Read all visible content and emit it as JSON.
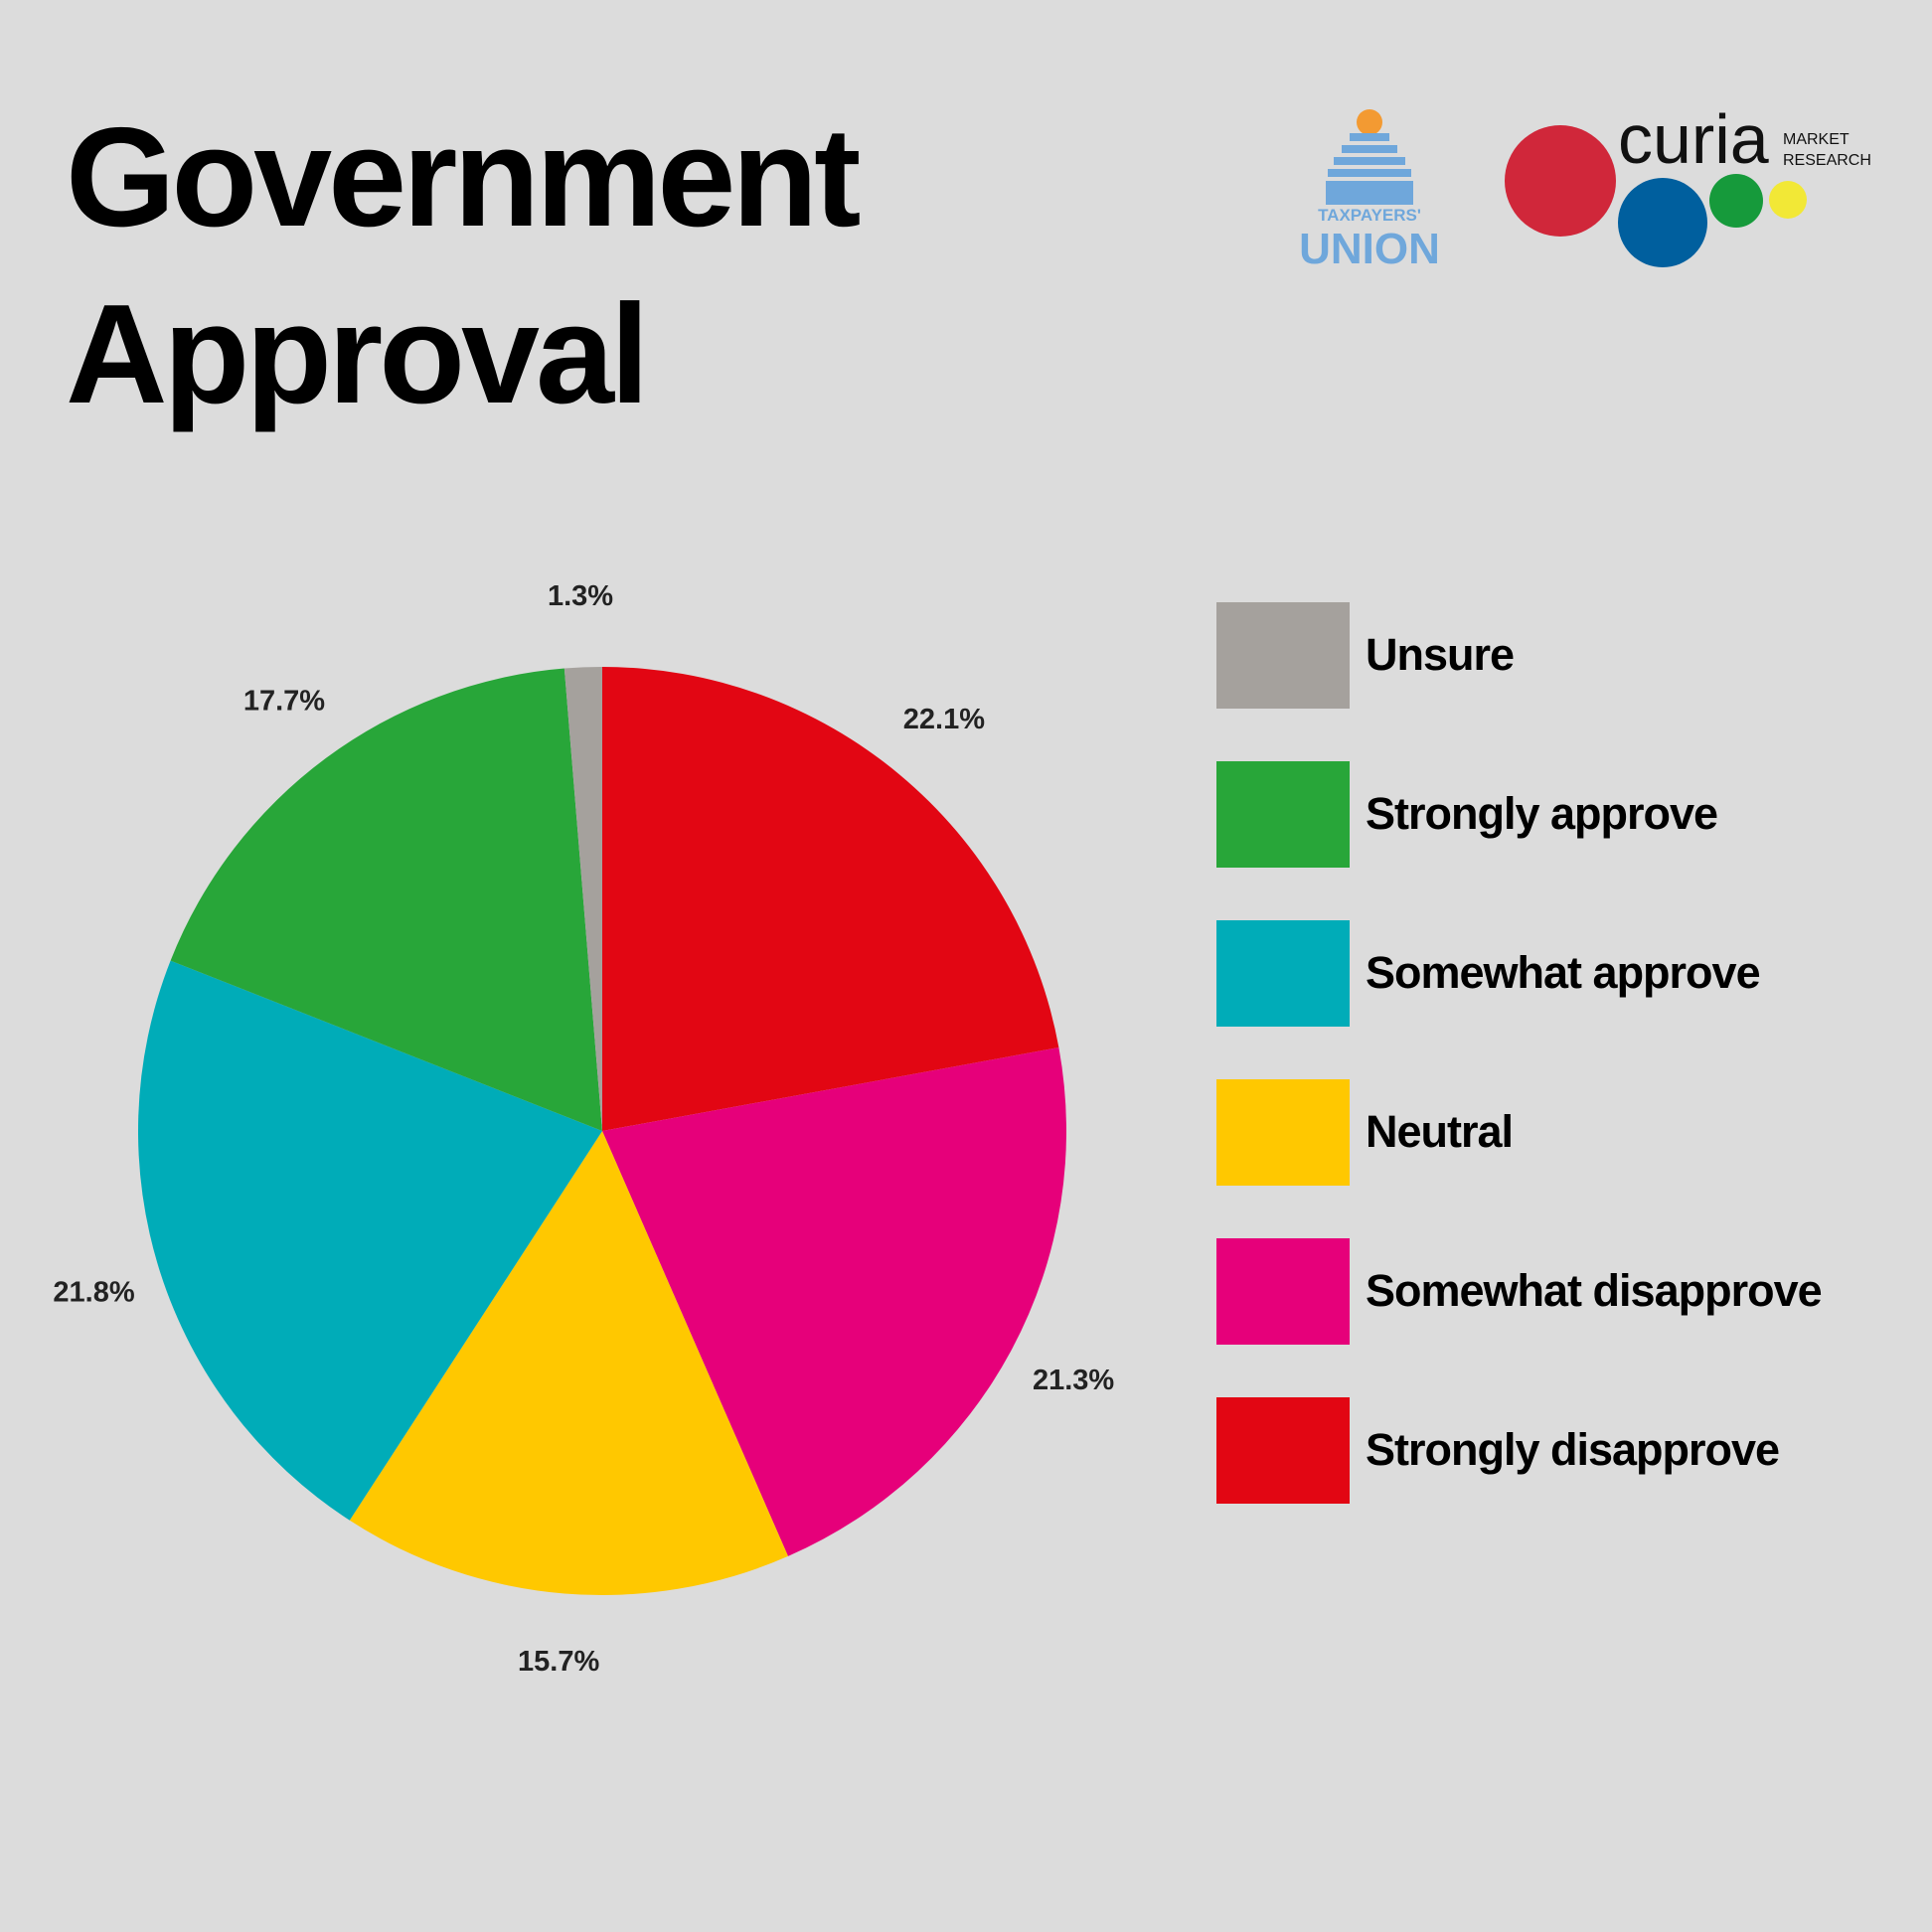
{
  "chart_data": {
    "type": "pie",
    "title": [
      "Government",
      "Approval"
    ],
    "categories": [
      "Unsure",
      "Strongly approve",
      "Somewhat approve",
      "Neutral",
      "Somewhat disapprove",
      "Strongly disapprove"
    ],
    "values": [
      1.3,
      17.7,
      21.8,
      15.7,
      21.3,
      22.1
    ],
    "value_labels": [
      "1.3%",
      "17.7%",
      "21.8%",
      "15.7%",
      "21.3%",
      "22.1%"
    ],
    "colors": [
      "#a5a19d",
      "#28a639",
      "#00acb8",
      "#ffc800",
      "#e6007a",
      "#e20613"
    ],
    "logos": {
      "taxpayers": [
        "TAXPAYERS'",
        "UNION"
      ],
      "curia": "curia",
      "curia_sub": [
        "MARKET",
        "RESEARCH"
      ]
    }
  }
}
